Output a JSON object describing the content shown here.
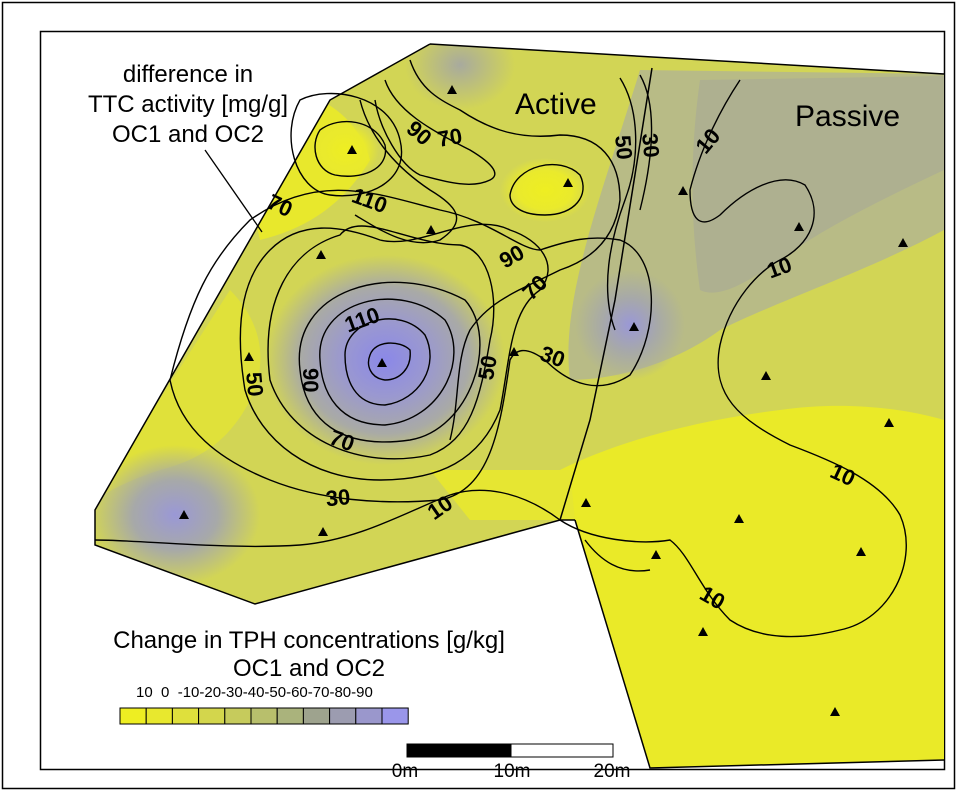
{
  "map": {
    "area_labels": {
      "active": "Active",
      "passive": "Passive"
    },
    "annotation": {
      "line1": "difference in",
      "line2": "TTC activity [mg/g]",
      "line3": "OC1 and OC2"
    },
    "contour_labels": [
      {
        "value": "70"
      },
      {
        "value": "90"
      },
      {
        "value": "110"
      },
      {
        "value": "70"
      },
      {
        "value": "50"
      },
      {
        "value": "30"
      },
      {
        "value": "10"
      },
      {
        "value": "90"
      },
      {
        "value": "70"
      },
      {
        "value": "110"
      },
      {
        "value": "90"
      },
      {
        "value": "50"
      },
      {
        "value": "50"
      },
      {
        "value": "30"
      },
      {
        "value": "70"
      },
      {
        "value": "30"
      },
      {
        "value": "10"
      },
      {
        "value": "10"
      },
      {
        "value": "10"
      },
      {
        "value": "10"
      }
    ],
    "sample_points_count": 22
  },
  "legend": {
    "title_line1": "Change in TPH concentrations [g/kg]",
    "title_line2": "OC1 and OC2",
    "tick_text": "10  0  -10-20-30-40-50-60-70-80-90",
    "ticks": [
      "10",
      "0",
      "-10",
      "-20",
      "-30",
      "-40",
      "-50",
      "-60",
      "-70",
      "-80",
      "-90"
    ],
    "colors": [
      "#eeee22",
      "#e8e82e",
      "#dfe03c",
      "#d3d64c",
      "#c6cb5c",
      "#b8bf6c",
      "#aab37c",
      "#9ea38e",
      "#9c9cb0",
      "#9a97cc",
      "#9a96ea"
    ]
  },
  "scale_bar": {
    "labels": [
      "0m",
      "10m",
      "20m"
    ]
  },
  "colors": {
    "yellow": "#eeee22",
    "olive": "#cfd35c",
    "grey": "#a8aa9c",
    "blue_violet": "#8e8cd6",
    "contour": "#000000"
  }
}
